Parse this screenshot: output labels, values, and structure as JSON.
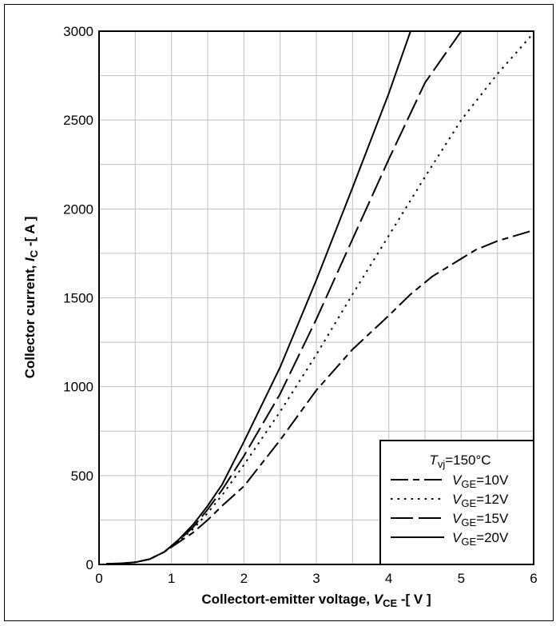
{
  "chart_data": {
    "type": "line",
    "xlabel": {
      "prefix": "Collectort-emitter voltage, ",
      "var": "V",
      "sub": "CE",
      "suffix": " -[ V ]"
    },
    "ylabel": {
      "prefix": "Collector current, ",
      "var": "I",
      "sub": "C",
      "suffix": " -[ A ]"
    },
    "xlim": [
      0,
      6
    ],
    "ylim": [
      0,
      3000
    ],
    "x_ticks": [
      0,
      1,
      2,
      3,
      4,
      5,
      6
    ],
    "y_ticks": [
      0,
      500,
      1000,
      1500,
      2000,
      2500,
      3000
    ],
    "grid": true,
    "legend_position": "bottom-right",
    "legend_title": {
      "var": "T",
      "sub": "vj",
      "rest": "=150°C"
    },
    "series": [
      {
        "name": "VGE=10V",
        "label": {
          "var": "V",
          "sub": "GE",
          "rest": "=10V"
        },
        "dash": "long-dash",
        "x": [
          0.1,
          0.3,
          0.5,
          0.7,
          0.9,
          1.1,
          1.3,
          1.5,
          1.7,
          2.0,
          2.5,
          3.0,
          3.5,
          4.0,
          4.3,
          4.6,
          5.0,
          5.2,
          5.5,
          6.0
        ],
        "y": [
          3,
          6,
          12,
          30,
          70,
          125,
          180,
          250,
          330,
          440,
          700,
          980,
          1210,
          1400,
          1520,
          1620,
          1720,
          1770,
          1820,
          1880
        ]
      },
      {
        "name": "VGE=12V",
        "label": {
          "var": "V",
          "sub": "GE",
          "rest": "=12V"
        },
        "dash": "dotted",
        "x": [
          0.1,
          0.3,
          0.5,
          0.7,
          0.9,
          1.1,
          1.3,
          1.5,
          1.7,
          2.0,
          2.5,
          3.0,
          3.5,
          4.0,
          4.5,
          5.0,
          5.5,
          6.0
        ],
        "y": [
          3,
          6,
          12,
          30,
          70,
          130,
          200,
          290,
          390,
          560,
          860,
          1180,
          1520,
          1850,
          2180,
          2500,
          2760,
          2990
        ]
      },
      {
        "name": "VGE=15V",
        "label": {
          "var": "V",
          "sub": "GE",
          "rest": "=15V"
        },
        "dash": "dash-dot",
        "x": [
          0.1,
          0.3,
          0.5,
          0.7,
          0.9,
          1.1,
          1.3,
          1.5,
          1.7,
          2.0,
          2.5,
          3.0,
          3.5,
          4.0,
          4.5,
          5.0
        ],
        "y": [
          3,
          6,
          12,
          30,
          70,
          135,
          210,
          310,
          420,
          610,
          960,
          1380,
          1830,
          2280,
          2710,
          3000
        ]
      },
      {
        "name": "VGE=20V",
        "label": {
          "var": "V",
          "sub": "GE",
          "rest": "=20V"
        },
        "dash": "solid",
        "x": [
          0.1,
          0.3,
          0.5,
          0.7,
          0.9,
          1.1,
          1.3,
          1.5,
          1.7,
          2.0,
          2.5,
          3.0,
          3.5,
          4.0,
          4.3
        ],
        "y": [
          3,
          6,
          12,
          30,
          70,
          140,
          225,
          330,
          450,
          690,
          1110,
          1600,
          2120,
          2650,
          3000
        ]
      }
    ]
  }
}
